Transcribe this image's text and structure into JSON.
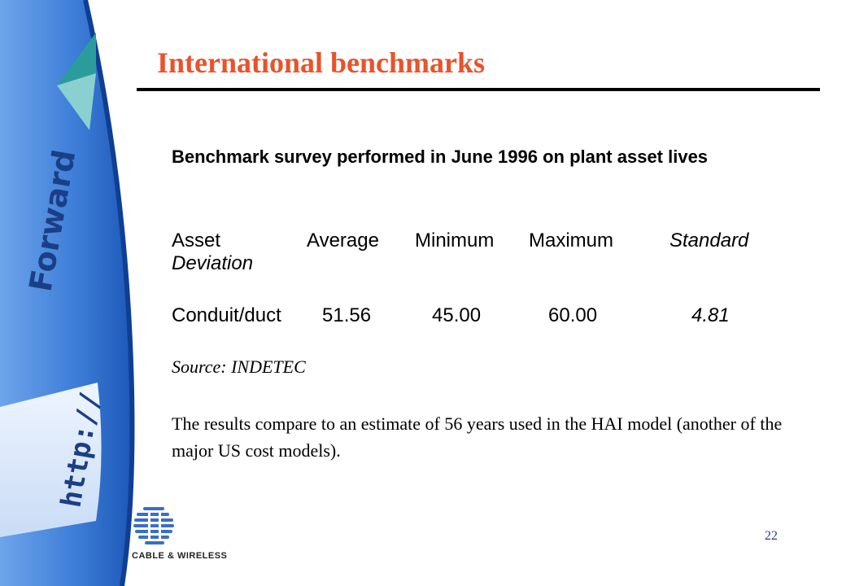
{
  "slide": {
    "title": "International benchmarks",
    "intro": "Benchmark survey performed in June 1996 on plant asset lives",
    "table": {
      "headers": {
        "asset": "Asset",
        "average": "Average",
        "minimum": "Minimum",
        "maximum": "Maximum",
        "std_part1": "Standard",
        "std_part2": "Deviation"
      },
      "rows": [
        {
          "asset": "Conduit/duct",
          "average": "51.56",
          "minimum": "45.00",
          "maximum": "60.00",
          "std_dev": "4.81"
        }
      ]
    },
    "source": "Source: INDETEC",
    "note": "The results compare to an estimate of 56 years used in the HAI model (another of the major US cost models).",
    "page_number": "22"
  },
  "decoration": {
    "side_art_words": [
      "Forward",
      "http://"
    ],
    "accent_color": "#e8532b",
    "side_art_color": "#3f7fd9",
    "logo_text": "CABLE & WIRELESS",
    "logo_icon": "globe-stripes-icon"
  }
}
